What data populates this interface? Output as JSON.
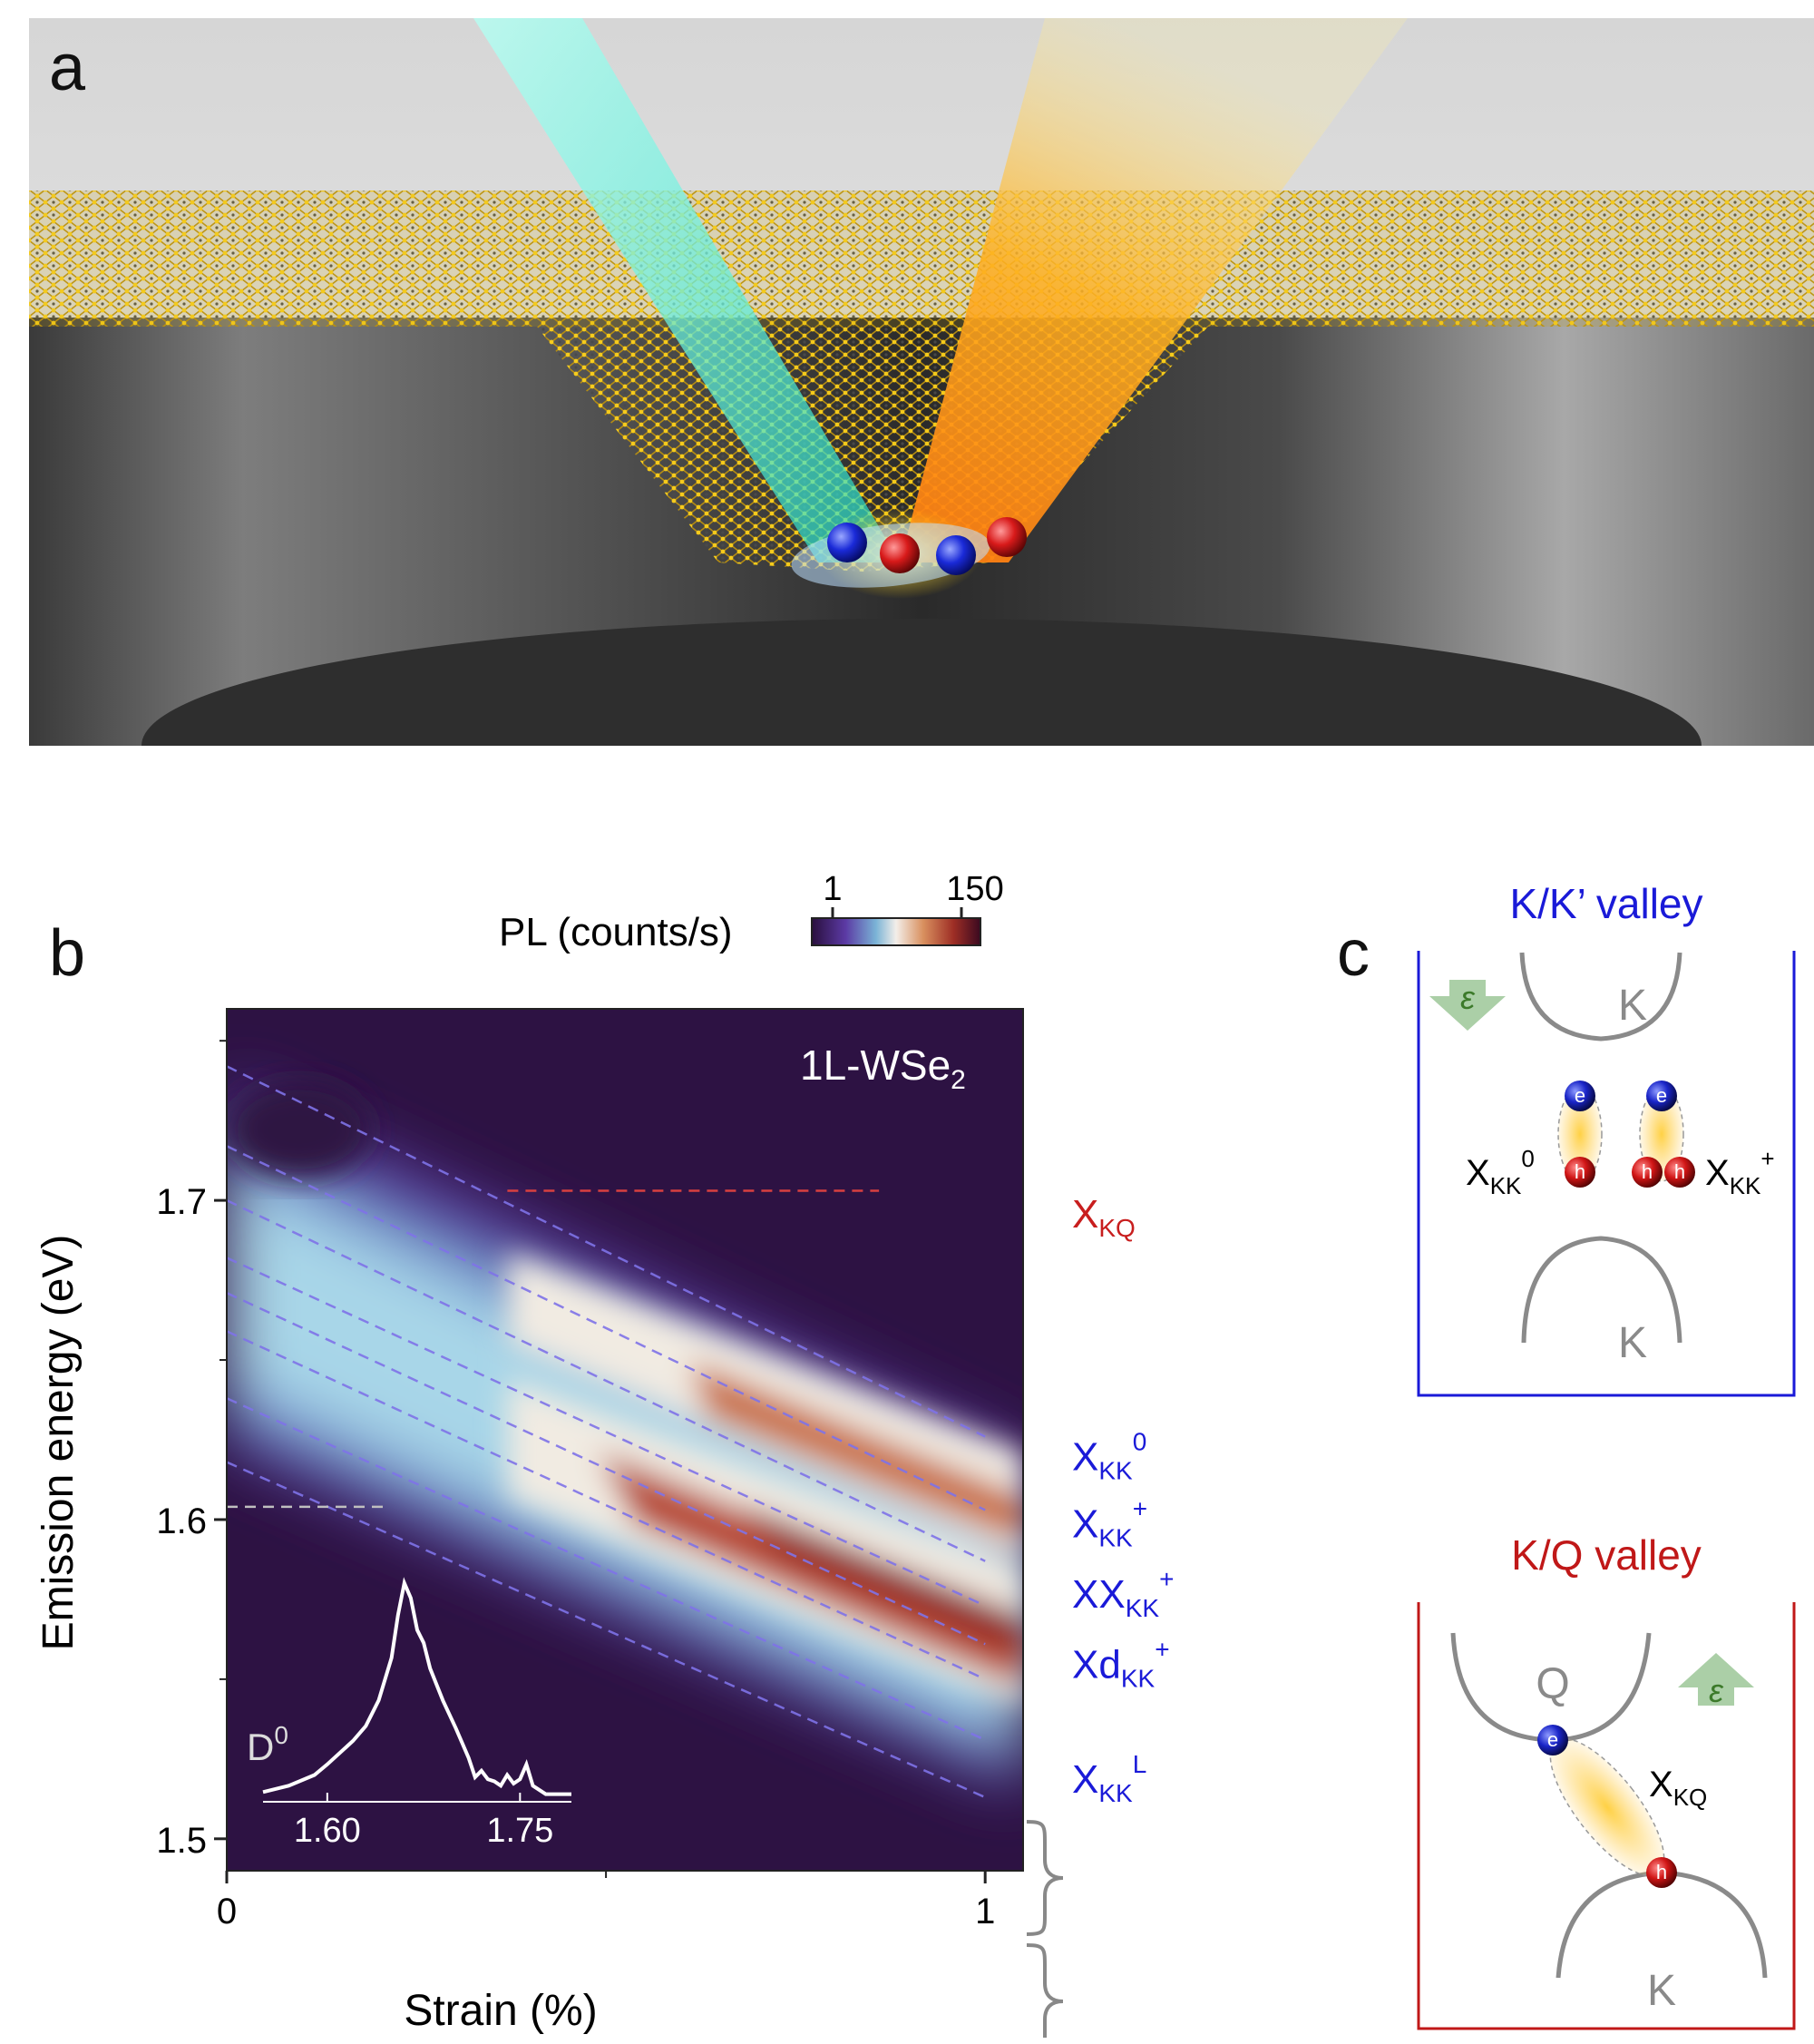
{
  "panel_a": {
    "letter": "a",
    "scene": "strained-wse2-membrane-illustration"
  },
  "panel_b": {
    "letter": "b",
    "colorbar": {
      "label": "PL (counts/s)",
      "min": "1",
      "max": "150"
    },
    "material_label": "1L-WSe",
    "material_sub": "2",
    "d0_label": "D",
    "d0_sup": "0",
    "chart_data": {
      "type": "heatmap",
      "xlabel": "Strain (%)",
      "ylabel": "Emission energy (eV)",
      "xlim": [
        0,
        1.05
      ],
      "ylim": [
        1.49,
        1.76
      ],
      "xticks": [
        "0",
        "1"
      ],
      "yticks": [
        "1.5",
        "1.6",
        "1.7"
      ],
      "ytick_values": [
        1.5,
        1.6,
        1.7
      ],
      "xtick_values": [
        0,
        1
      ],
      "colorbar_range": [
        1,
        150
      ],
      "guides": [
        {
          "x": [
            0,
            1
          ],
          "y": [
            1.742,
            1.626
          ]
        },
        {
          "x": [
            0,
            1
          ],
          "y": [
            1.717,
            1.603
          ]
        },
        {
          "x": [
            0,
            1
          ],
          "y": [
            1.7,
            1.587
          ]
        },
        {
          "x": [
            0,
            1
          ],
          "y": [
            1.682,
            1.573
          ]
        },
        {
          "x": [
            0,
            1
          ],
          "y": [
            1.671,
            1.561
          ]
        },
        {
          "x": [
            0,
            1
          ],
          "y": [
            1.659,
            1.55
          ]
        },
        {
          "x": [
            0,
            1
          ],
          "y": [
            1.638,
            1.531
          ]
        },
        {
          "x": [
            0,
            1
          ],
          "y": [
            1.618,
            1.513
          ]
        }
      ],
      "xkq_line": {
        "x": [
          0.37,
          0.86
        ],
        "y": [
          1.703,
          1.703
        ]
      },
      "d0_line": {
        "x": [
          0,
          0.21
        ],
        "y": [
          1.604,
          1.604
        ]
      },
      "labels_right": [
        {
          "text": "X",
          "sub": "KQ",
          "sup": "",
          "energy": 1.696,
          "color": "#c81e1e"
        },
        {
          "text": "X",
          "sub": "KK",
          "sup": "0",
          "energy": 1.62,
          "color": "#1a1ad8"
        },
        {
          "text": "X",
          "sub": "KK",
          "sup": "+",
          "energy": 1.599,
          "color": "#1a1ad8"
        },
        {
          "text": "XX",
          "sub": "KK",
          "sup": "+",
          "energy": 1.577,
          "color": "#1a1ad8"
        },
        {
          "text": "Xd",
          "sub": "KK",
          "sup": "+",
          "energy": 1.555,
          "color": "#1a1ad8"
        },
        {
          "text": "X",
          "sub": "KK",
          "sup": "L",
          "energy": 1.519,
          "color": "#1a1ad8"
        }
      ],
      "inset": {
        "type": "line",
        "xticks": [
          "1.60",
          "1.75"
        ],
        "xtick_values": [
          1.6,
          1.75
        ],
        "xlim": [
          1.55,
          1.79
        ],
        "x": [
          1.55,
          1.57,
          1.59,
          1.6,
          1.62,
          1.63,
          1.64,
          1.65,
          1.655,
          1.66,
          1.665,
          1.67,
          1.675,
          1.68,
          1.69,
          1.7,
          1.71,
          1.715,
          1.72,
          1.725,
          1.73,
          1.735,
          1.74,
          1.745,
          1.75,
          1.755,
          1.76,
          1.77,
          1.79
        ],
        "y": [
          0.02,
          0.05,
          0.1,
          0.15,
          0.26,
          0.33,
          0.45,
          0.65,
          0.85,
          1.0,
          0.93,
          0.78,
          0.72,
          0.6,
          0.45,
          0.32,
          0.18,
          0.09,
          0.12,
          0.08,
          0.07,
          0.05,
          0.1,
          0.06,
          0.08,
          0.15,
          0.05,
          0.01,
          0.01
        ]
      }
    }
  },
  "panel_c": {
    "letter": "c",
    "kk": {
      "title": "K/K’ valley",
      "color": "#1a1ad8",
      "top_valley": "K",
      "bottom_valley": "K",
      "strain_symbol": "ε",
      "left_exciton": {
        "text": "X",
        "sub": "KK",
        "sup": "0"
      },
      "right_exciton": {
        "text": "X",
        "sub": "KK",
        "sup": "+"
      },
      "electron": "e",
      "hole": "h"
    },
    "kq": {
      "title": "K/Q valley",
      "color": "#c01818",
      "top_valley": "Q",
      "bottom_valley": "K",
      "strain_symbol": "ε",
      "exciton": {
        "text": "X",
        "sub": "KQ",
        "sup": ""
      },
      "electron": "e",
      "hole": "h"
    }
  }
}
